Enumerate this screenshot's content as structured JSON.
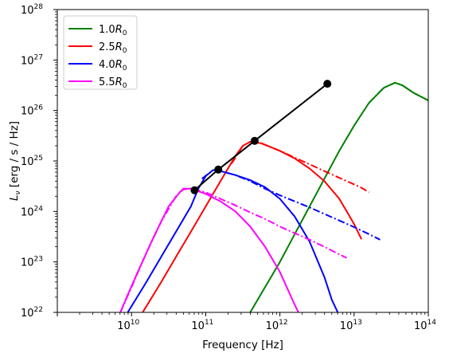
{
  "chart_data": {
    "type": "line",
    "title": "",
    "xlabel": "Frequency [Hz]",
    "ylabel_main": "L",
    "ylabel_sub": "ν",
    "ylabel_unit": " [erg / s / Hz]",
    "xscale": "log",
    "yscale": "log",
    "xlim_exp": [
      9,
      14
    ],
    "ylim_exp": [
      22,
      28
    ],
    "x_tick_exponents": [
      10,
      11,
      12,
      13,
      14
    ],
    "y_tick_exponents": [
      22,
      23,
      24,
      25,
      26,
      27,
      28
    ],
    "tick_base": "10",
    "grid": false,
    "legend_position": "top-left",
    "series": [
      {
        "name_prefix": "1.0",
        "name_symbol": "R",
        "name_sub": "0",
        "color": "#008000",
        "solid": [
          [
            11.6,
            22.0
          ],
          [
            11.8,
            22.5
          ],
          [
            12.0,
            23.0
          ],
          [
            12.2,
            23.55
          ],
          [
            12.4,
            24.1
          ],
          [
            12.6,
            24.65
          ],
          [
            12.8,
            25.2
          ],
          [
            13.0,
            25.7
          ],
          [
            13.2,
            26.15
          ],
          [
            13.4,
            26.45
          ],
          [
            13.55,
            26.55
          ],
          [
            13.65,
            26.5
          ],
          [
            13.8,
            26.35
          ],
          [
            14.0,
            26.2
          ],
          [
            14.3,
            26.0
          ],
          [
            14.6,
            25.8
          ],
          [
            14.9,
            25.6
          ],
          [
            15.2,
            25.4
          ],
          [
            15.4,
            25.26
          ]
        ],
        "dashdot": [
          [
            13.2,
            26.15
          ],
          [
            13.4,
            26.45
          ],
          [
            13.55,
            26.55
          ],
          [
            13.65,
            26.5
          ],
          [
            13.8,
            26.35
          ],
          [
            14.0,
            26.2
          ],
          [
            14.3,
            26.0
          ],
          [
            14.6,
            25.8
          ],
          [
            14.9,
            25.6
          ],
          [
            15.2,
            25.4
          ],
          [
            15.4,
            25.26
          ]
        ]
      },
      {
        "name_prefix": "2.5",
        "name_symbol": "R",
        "name_sub": "0",
        "color": "#ff0000",
        "solid": [
          [
            10.15,
            22.0
          ],
          [
            10.4,
            22.6
          ],
          [
            10.6,
            23.1
          ],
          [
            10.8,
            23.6
          ],
          [
            11.0,
            24.1
          ],
          [
            11.2,
            24.6
          ],
          [
            11.4,
            25.1
          ],
          [
            11.5,
            25.3
          ],
          [
            11.6,
            25.38
          ],
          [
            11.75,
            25.35
          ],
          [
            12.0,
            25.2
          ],
          [
            12.2,
            25.05
          ],
          [
            12.4,
            24.85
          ],
          [
            12.6,
            24.6
          ],
          [
            12.8,
            24.25
          ],
          [
            12.9,
            24.0
          ],
          [
            13.0,
            23.75
          ],
          [
            13.1,
            23.45
          ]
        ],
        "dashdot": [
          [
            11.35,
            24.95
          ],
          [
            11.5,
            25.3
          ],
          [
            11.6,
            25.38
          ],
          [
            11.75,
            25.35
          ],
          [
            12.0,
            25.2
          ],
          [
            12.3,
            25.0
          ],
          [
            12.6,
            24.8
          ],
          [
            12.9,
            24.6
          ],
          [
            13.1,
            24.47
          ],
          [
            13.2,
            24.38
          ]
        ]
      },
      {
        "name_prefix": "4.0",
        "name_symbol": "R",
        "name_sub": "0",
        "color": "#0000ff",
        "solid": [
          [
            9.95,
            22.0
          ],
          [
            10.2,
            22.6
          ],
          [
            10.4,
            23.1
          ],
          [
            10.6,
            23.6
          ],
          [
            10.8,
            24.1
          ],
          [
            10.9,
            24.45
          ],
          [
            11.0,
            24.7
          ],
          [
            11.1,
            24.82
          ],
          [
            11.2,
            24.8
          ],
          [
            11.4,
            24.72
          ],
          [
            11.6,
            24.62
          ],
          [
            11.8,
            24.48
          ],
          [
            12.0,
            24.25
          ],
          [
            12.2,
            23.9
          ],
          [
            12.4,
            23.4
          ],
          [
            12.5,
            23.05
          ],
          [
            12.6,
            22.7
          ],
          [
            12.7,
            22.25
          ],
          [
            12.78,
            22.0
          ]
        ],
        "dashdot": [
          [
            10.95,
            24.65
          ],
          [
            11.1,
            24.82
          ],
          [
            11.2,
            24.8
          ],
          [
            11.4,
            24.72
          ],
          [
            11.6,
            24.6
          ],
          [
            11.8,
            24.45
          ],
          [
            12.0,
            24.32
          ],
          [
            12.2,
            24.2
          ],
          [
            12.4,
            24.08
          ],
          [
            12.6,
            23.95
          ],
          [
            12.8,
            23.82
          ],
          [
            13.0,
            23.69
          ],
          [
            13.2,
            23.55
          ],
          [
            13.35,
            23.44
          ]
        ]
      },
      {
        "name_prefix": "5.5",
        "name_symbol": "R",
        "name_sub": "0",
        "color": "#ff00ff",
        "solid": [
          [
            9.85,
            22.0
          ],
          [
            9.95,
            22.35
          ],
          [
            10.1,
            22.85
          ],
          [
            10.3,
            23.5
          ],
          [
            10.5,
            24.1
          ],
          [
            10.65,
            24.38
          ],
          [
            10.7,
            24.45
          ],
          [
            10.8,
            24.45
          ],
          [
            11.0,
            24.35
          ],
          [
            11.2,
            24.2
          ],
          [
            11.4,
            24.0
          ],
          [
            11.6,
            23.7
          ],
          [
            11.8,
            23.3
          ],
          [
            12.0,
            22.8
          ],
          [
            12.2,
            22.15
          ],
          [
            12.25,
            22.0
          ]
        ],
        "dashdot": [
          [
            9.85,
            22.0
          ],
          [
            10.0,
            22.5
          ],
          [
            10.2,
            23.18
          ],
          [
            10.4,
            23.8
          ],
          [
            10.6,
            24.3
          ],
          [
            10.7,
            24.44
          ],
          [
            10.8,
            24.45
          ],
          [
            11.0,
            24.38
          ],
          [
            11.2,
            24.25
          ],
          [
            11.4,
            24.12
          ],
          [
            11.6,
            23.98
          ],
          [
            11.8,
            23.85
          ],
          [
            12.0,
            23.7
          ],
          [
            12.2,
            23.57
          ],
          [
            12.4,
            23.44
          ],
          [
            12.6,
            23.3
          ],
          [
            12.8,
            23.15
          ],
          [
            12.9,
            23.08
          ]
        ]
      }
    ],
    "peak_line": {
      "color": "#000000",
      "points": [
        [
          10.85,
          24.42
        ],
        [
          11.17,
          24.83
        ],
        [
          11.66,
          25.4
        ],
        [
          12.64,
          26.53
        ]
      ]
    }
  }
}
